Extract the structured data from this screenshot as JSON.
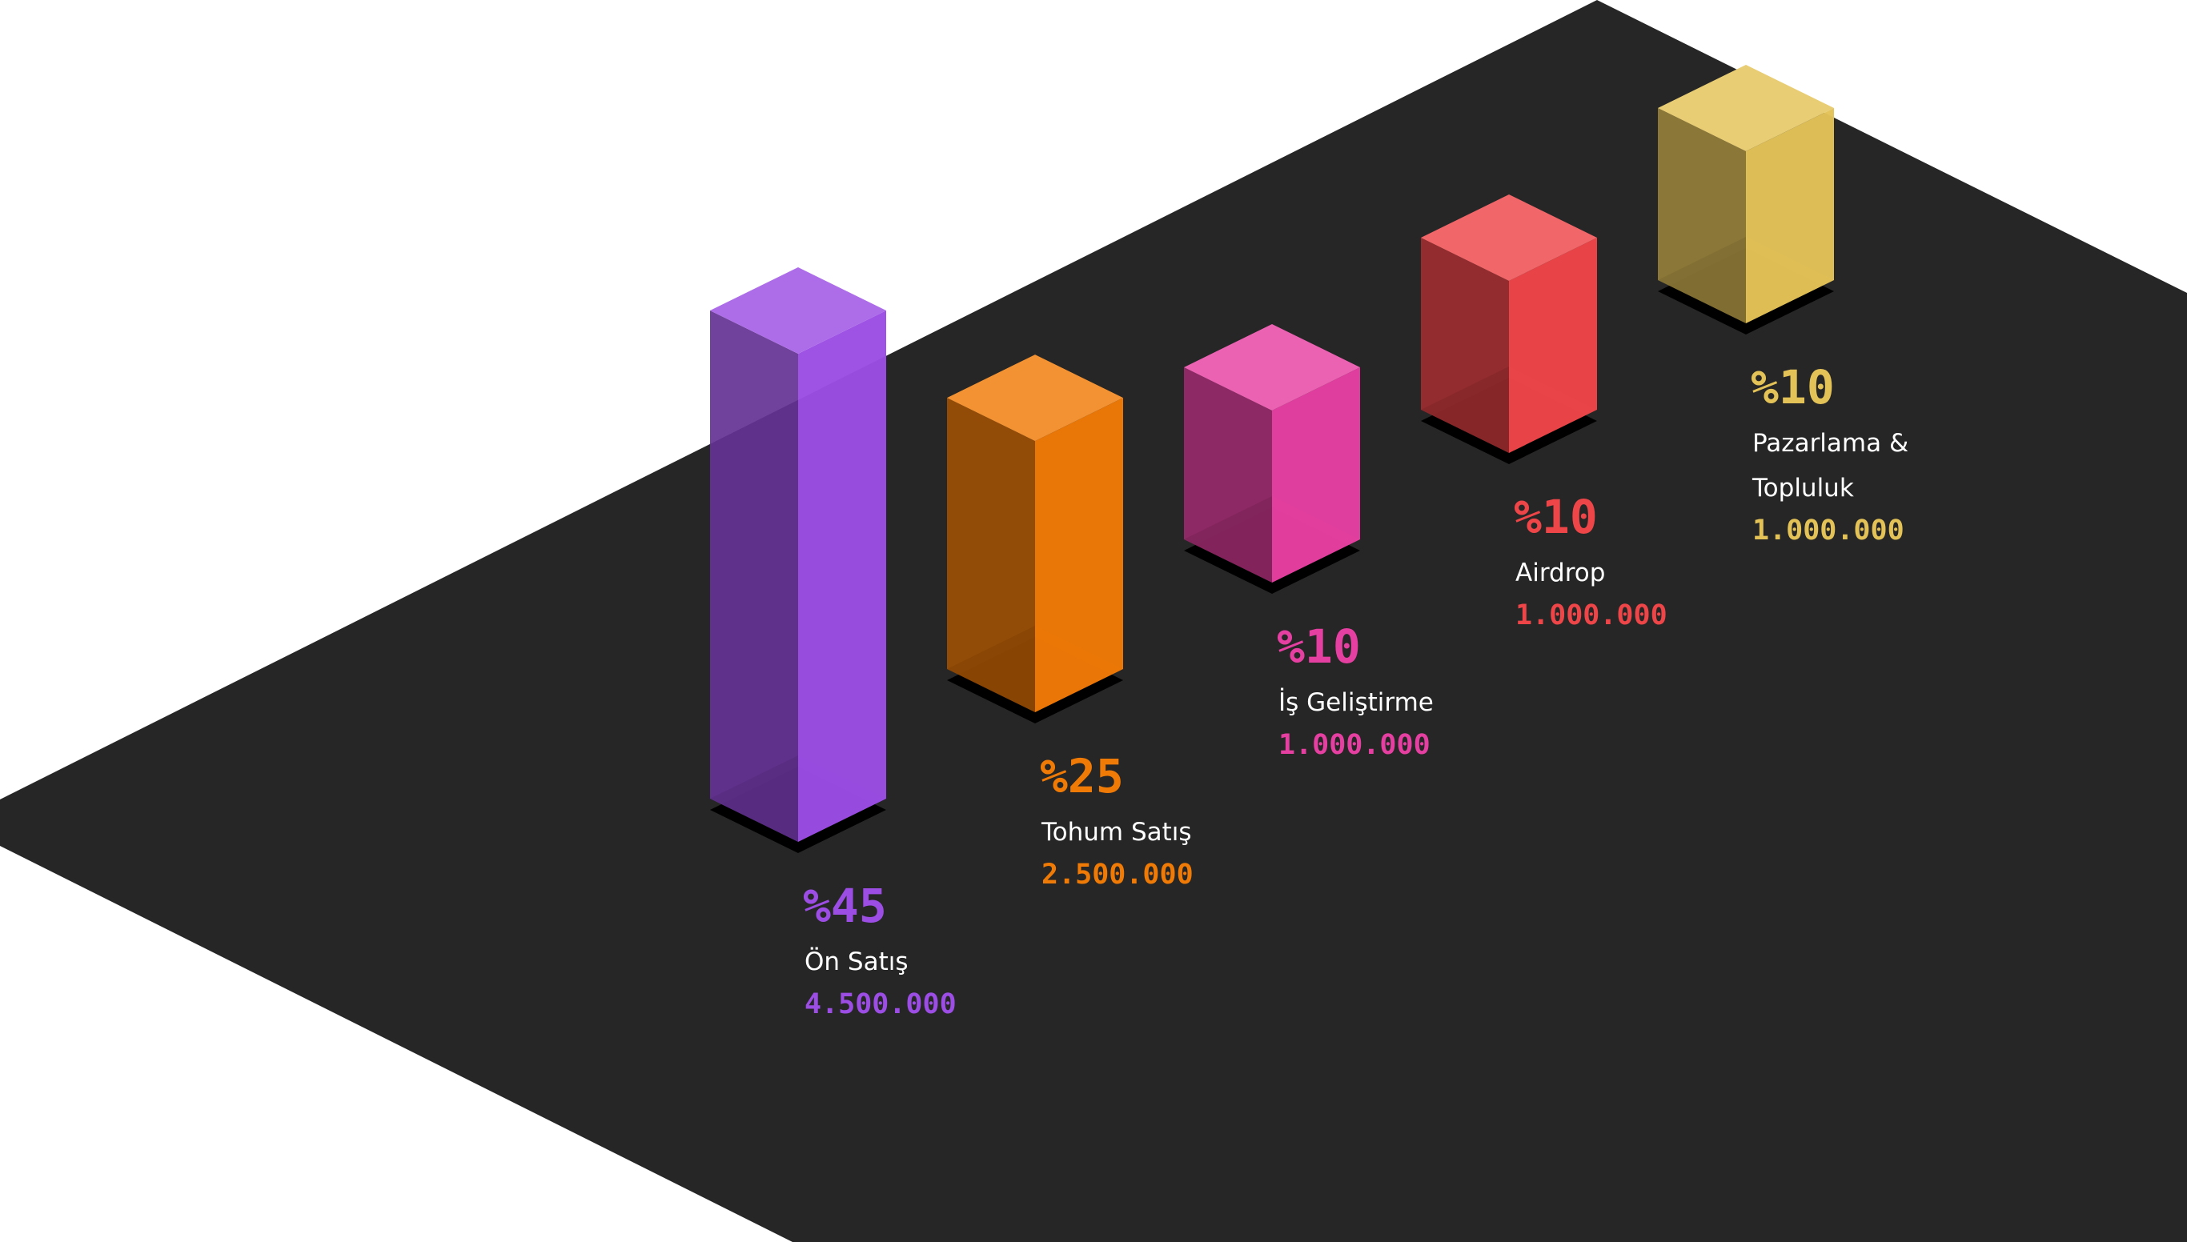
{
  "chart_data": {
    "type": "bar",
    "style": "isometric-3d",
    "categories": [
      "Ön Satış",
      "Tohum Satış",
      "İş Geliştirme",
      "Airdrop",
      "Pazarlama & Topluluk"
    ],
    "label_lines": [
      [
        "Ön Satış"
      ],
      [
        "Tohum Satış"
      ],
      [
        "İş Geliştirme"
      ],
      [
        "Airdrop"
      ],
      [
        "Pazarlama &",
        "Topluluk"
      ]
    ],
    "values": [
      45,
      25,
      10,
      10,
      10
    ],
    "percent_labels": [
      "%45",
      "%25",
      "%10",
      "%10",
      "%10"
    ],
    "amount_labels": [
      "4.500.000",
      "2.500.000",
      "1.000.000",
      "1.000.000",
      "1.000.000"
    ],
    "amounts": [
      4500000,
      2500000,
      1000000,
      1000000,
      1000000
    ],
    "colors": [
      "#9B4DE4",
      "#F07A06",
      "#E63FA2",
      "#EE4548",
      "#E3C257"
    ],
    "title": "",
    "xlabel": "",
    "ylabel": "",
    "legend": "none",
    "grid": false
  },
  "background": {
    "page": "#FFFFFF",
    "floor": "#262626",
    "shadow": "#000000",
    "label_text": "#FFFFFF"
  }
}
